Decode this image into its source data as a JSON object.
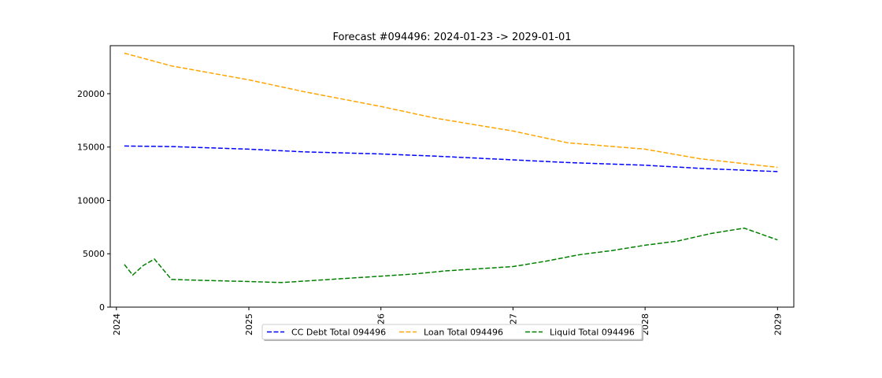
{
  "chart_data": {
    "type": "line",
    "title": "Forecast #094496: 2024-01-23 -> 2029-01-01",
    "xlabel": "",
    "ylabel": "",
    "x_range": [
      "2023-12-15",
      "2029-02-15"
    ],
    "ylim": [
      0,
      24500
    ],
    "x_ticks": [
      {
        "date": "2024-01-01",
        "label": "2024"
      },
      {
        "date": "2025-01-01",
        "label": "2025"
      },
      {
        "date": "2026-01-01",
        "label": "2026"
      },
      {
        "date": "2027-01-01",
        "label": "2027"
      },
      {
        "date": "2028-01-01",
        "label": "2028"
      },
      {
        "date": "2029-01-01",
        "label": "2029"
      }
    ],
    "y_ticks": [
      0,
      5000,
      10000,
      15000,
      20000
    ],
    "grid": false,
    "legend_position": "bottom-center",
    "series": [
      {
        "name": "CC Debt Total 094496",
        "color": "#0000ff",
        "style": "dashed",
        "points": [
          [
            "2024-01-23",
            15100
          ],
          [
            "2024-06-01",
            15050
          ],
          [
            "2025-01-01",
            14800
          ],
          [
            "2025-06-01",
            14550
          ],
          [
            "2026-01-01",
            14350
          ],
          [
            "2026-06-01",
            14150
          ],
          [
            "2027-01-01",
            13800
          ],
          [
            "2027-06-01",
            13550
          ],
          [
            "2028-01-01",
            13300
          ],
          [
            "2028-06-01",
            13000
          ],
          [
            "2029-01-01",
            12700
          ]
        ]
      },
      {
        "name": "Loan Total 094496",
        "color": "#ffa500",
        "style": "dashed",
        "points": [
          [
            "2024-01-23",
            23800
          ],
          [
            "2024-06-01",
            22600
          ],
          [
            "2025-01-01",
            21300
          ],
          [
            "2025-06-01",
            20200
          ],
          [
            "2026-01-01",
            18800
          ],
          [
            "2026-06-01",
            17700
          ],
          [
            "2027-01-01",
            16500
          ],
          [
            "2027-06-01",
            15400
          ],
          [
            "2028-01-01",
            14800
          ],
          [
            "2028-06-01",
            13900
          ],
          [
            "2029-01-01",
            13100
          ]
        ]
      },
      {
        "name": "Liquid Total 094496",
        "color": "#008000",
        "style": "dashed",
        "points": [
          [
            "2024-01-23",
            4000
          ],
          [
            "2024-02-15",
            3000
          ],
          [
            "2024-03-15",
            3900
          ],
          [
            "2024-04-15",
            4500
          ],
          [
            "2024-06-01",
            2600
          ],
          [
            "2024-09-01",
            2500
          ],
          [
            "2025-01-01",
            2400
          ],
          [
            "2025-04-01",
            2300
          ],
          [
            "2025-07-01",
            2500
          ],
          [
            "2025-10-01",
            2700
          ],
          [
            "2026-01-01",
            2900
          ],
          [
            "2026-04-01",
            3100
          ],
          [
            "2026-07-01",
            3400
          ],
          [
            "2026-10-01",
            3600
          ],
          [
            "2027-01-01",
            3800
          ],
          [
            "2027-04-01",
            4300
          ],
          [
            "2027-07-01",
            4900
          ],
          [
            "2027-10-01",
            5300
          ],
          [
            "2028-01-01",
            5800
          ],
          [
            "2028-04-01",
            6200
          ],
          [
            "2028-07-01",
            6900
          ],
          [
            "2028-10-01",
            7400
          ],
          [
            "2029-01-01",
            6300
          ]
        ]
      }
    ]
  }
}
